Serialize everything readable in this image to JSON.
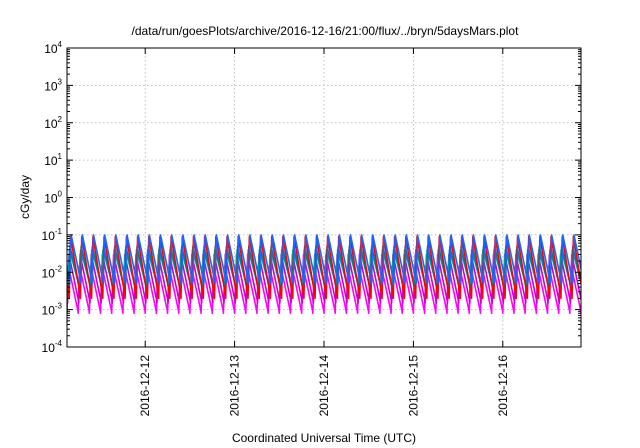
{
  "chart_data": {
    "type": "line",
    "title": "/data/run/goesPlots/archive/2016-12-16/21:00/flux/../bryn/5daysMars.plot",
    "xlabel": "Coordinated Universal Time (UTC)",
    "ylabel": "cGy/day",
    "y_scale": "log",
    "ylim": [
      0.0001,
      10000
    ],
    "y_ticks": [
      {
        "value": 0.0001,
        "base": "10",
        "exp": "-4"
      },
      {
        "value": 0.001,
        "base": "10",
        "exp": "-3"
      },
      {
        "value": 0.01,
        "base": "10",
        "exp": "-2"
      },
      {
        "value": 0.1,
        "base": "10",
        "exp": "-1"
      },
      {
        "value": 1,
        "base": "10",
        "exp": "0"
      },
      {
        "value": 10,
        "base": "10",
        "exp": "1"
      },
      {
        "value": 100,
        "base": "10",
        "exp": "2"
      },
      {
        "value": 1000,
        "base": "10",
        "exp": "3"
      },
      {
        "value": 10000,
        "base": "10",
        "exp": "4"
      }
    ],
    "xlim": [
      "2016-12-11T03:00",
      "2016-12-16T21:00"
    ],
    "x_ticks": [
      {
        "value": "2016-12-12T00:00",
        "label": "2016-12-12"
      },
      {
        "value": "2016-12-13T00:00",
        "label": "2016-12-13"
      },
      {
        "value": "2016-12-14T00:00",
        "label": "2016-12-14"
      },
      {
        "value": "2016-12-15T00:00",
        "label": "2016-12-15"
      },
      {
        "value": "2016-12-16T00:00",
        "label": "2016-12-16"
      }
    ],
    "grid": true,
    "legend": "none",
    "oscillation_period_hours": 3,
    "series": [
      {
        "color": "#ff00ff",
        "min": 0.0008,
        "max": 0.015
      },
      {
        "color": "#cc00cc",
        "min": 0.0015,
        "max": 0.03
      },
      {
        "color": "#00b0b0",
        "min": 0.004,
        "max": 0.04
      },
      {
        "color": "#008080",
        "min": 0.003,
        "max": 0.05
      },
      {
        "color": "#ff0000",
        "min": 0.002,
        "max": 0.09
      },
      {
        "color": "#1e64ff",
        "min": 0.005,
        "max": 0.1
      }
    ]
  }
}
